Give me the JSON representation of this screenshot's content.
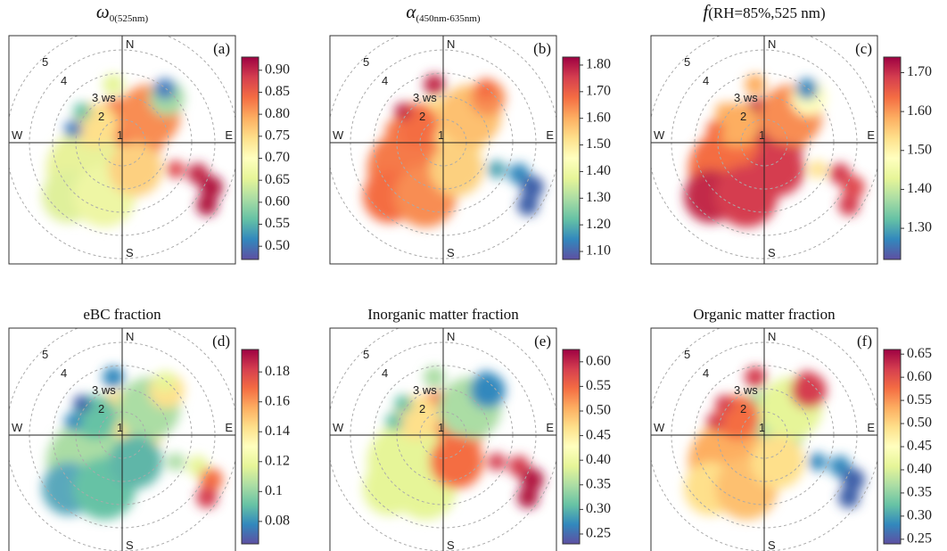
{
  "chart_data": [
    {
      "type": "polar",
      "title": {
        "main": "ω",
        "sub": "0(525nm)"
      },
      "panel_label": "(a)",
      "directions": [
        "N",
        "E",
        "S",
        "W"
      ],
      "ring_labels": [
        "1",
        "2",
        "3 ws",
        "4",
        "5"
      ],
      "clim": [
        0.47,
        0.93
      ],
      "cticks": [
        {
          "value": 0.5,
          "label": "0.50"
        },
        {
          "value": 0.55,
          "label": "0.55"
        },
        {
          "value": 0.6,
          "label": "0.60"
        },
        {
          "value": 0.65,
          "label": "0.65"
        },
        {
          "value": 0.7,
          "label": "0.70"
        },
        {
          "value": 0.75,
          "label": "0.75"
        },
        {
          "value": 0.8,
          "label": "0.80"
        },
        {
          "value": 0.85,
          "label": "0.85"
        },
        {
          "value": 0.9,
          "label": "0.90"
        }
      ]
    },
    {
      "type": "polar",
      "title": {
        "main": "α",
        "sub": "(450nm-635nm)"
      },
      "panel_label": "(b)",
      "directions": [
        "N",
        "E",
        "S",
        "W"
      ],
      "ring_labels": [
        "1",
        "2",
        "3 ws",
        "4",
        "5"
      ],
      "clim": [
        1.07,
        1.83
      ],
      "cticks": [
        {
          "value": 1.1,
          "label": "1.10"
        },
        {
          "value": 1.2,
          "label": "1.20"
        },
        {
          "value": 1.3,
          "label": "1.30"
        },
        {
          "value": 1.4,
          "label": "1.40"
        },
        {
          "value": 1.5,
          "label": "1.50"
        },
        {
          "value": 1.6,
          "label": "1.60"
        },
        {
          "value": 1.7,
          "label": "1.70"
        },
        {
          "value": 1.8,
          "label": "1.80"
        }
      ]
    },
    {
      "type": "polar",
      "title": {
        "main": "f",
        "rest": "(RH=85%,525 nm)"
      },
      "panel_label": "(c)",
      "directions": [
        "N",
        "E",
        "S",
        "W"
      ],
      "ring_labels": [
        "1",
        "2",
        "3 ws",
        "4",
        "5"
      ],
      "clim": [
        1.22,
        1.74
      ],
      "cticks": [
        {
          "value": 1.3,
          "label": "1.30"
        },
        {
          "value": 1.4,
          "label": "1.40"
        },
        {
          "value": 1.5,
          "label": "1.50"
        },
        {
          "value": 1.6,
          "label": "1.60"
        },
        {
          "value": 1.7,
          "label": "1.70"
        }
      ]
    },
    {
      "type": "polar",
      "title": "eBC fraction",
      "panel_label": "(d)",
      "directions": [
        "N",
        "E",
        "S",
        "W"
      ],
      "ring_labels": [
        "1",
        "2",
        "3 ws",
        "4",
        "5"
      ],
      "clim": [
        0.065,
        0.195
      ],
      "cticks": [
        0.08,
        0.1,
        0.12,
        0.14,
        0.16,
        0.18
      ]
    },
    {
      "type": "polar",
      "title": "Inorganic matter fraction",
      "panel_label": "(e)",
      "directions": [
        "N",
        "E",
        "S",
        "W"
      ],
      "ring_labels": [
        "1",
        "2",
        "3 ws",
        "4",
        "5"
      ],
      "clim": [
        0.23,
        0.625
      ],
      "cticks": [
        0.25,
        {
          "value": 0.3,
          "label": "0.30"
        },
        0.35,
        {
          "value": 0.4,
          "label": "0.40"
        },
        0.45,
        {
          "value": 0.5,
          "label": "0.50"
        },
        0.55,
        {
          "value": 0.6,
          "label": "0.60"
        }
      ]
    },
    {
      "type": "polar",
      "title": "Organic matter fraction",
      "panel_label": "(f)",
      "directions": [
        "N",
        "E",
        "S",
        "W"
      ],
      "ring_labels": [
        "1",
        "2",
        "3 ws",
        "4",
        "5"
      ],
      "clim": [
        0.24,
        0.66
      ],
      "cticks": [
        0.25,
        {
          "value": 0.3,
          "label": "0.30"
        },
        0.35,
        {
          "value": 0.4,
          "label": "0.40"
        },
        0.45,
        {
          "value": 0.5,
          "label": "0.50"
        },
        0.55,
        {
          "value": 0.6,
          "label": "0.60"
        },
        0.65
      ]
    }
  ]
}
